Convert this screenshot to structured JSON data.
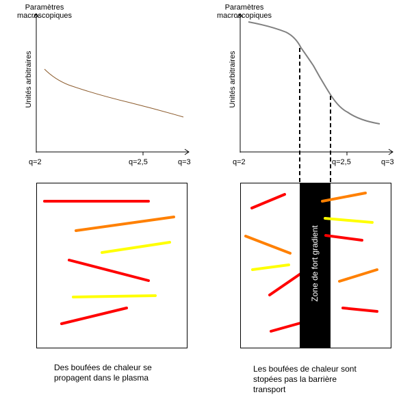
{
  "left_plot": {
    "title_line1": "Paramètres",
    "title_line2": "macroscopiques",
    "ylabel": "Unités arbitraires",
    "x_start_label": "q=2",
    "x_mid_label": "q=2,5",
    "x_end_label": "q=3",
    "curve_color": "#8b5a2b"
  },
  "right_plot": {
    "title_line1": "Paramètres",
    "title_line2": "macroscopiques",
    "ylabel": "Unités arbitraires",
    "x_start_label": "q=2",
    "x_mid_label": "q=2,5",
    "x_end_label": "q=3",
    "curve_color": "#808080"
  },
  "left_box": {
    "caption_line1": "Des boufées de chaleur se",
    "caption_line2": "propagent dans le plasma"
  },
  "right_box": {
    "barrier_label": "Zone de fort gradient",
    "caption_line1": "Les boufées de chaleur sont",
    "caption_line2": "stopées pas la barrière",
    "caption_line3": "transport"
  },
  "colors": {
    "red": "#ff0000",
    "orange": "#ff8000",
    "yellow": "#ffff00",
    "barrier": "#000000"
  }
}
